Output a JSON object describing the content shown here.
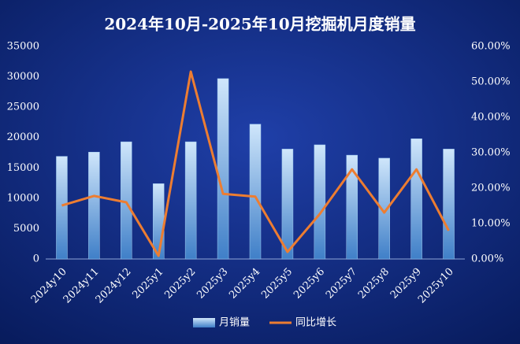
{
  "chart_data": {
    "type": "bar",
    "title": "2024年10月-2025年10月挖掘机月度销量",
    "categories": [
      "2024y10",
      "2024y11",
      "2024y12",
      "2025y1",
      "2025y2",
      "2025y3",
      "2025y4",
      "2025y5",
      "2025y6",
      "2025y7",
      "2025y8",
      "2025y9",
      "2025y10"
    ],
    "series": [
      {
        "name": "月销量",
        "color": "#9cc8ee",
        "values": [
          16900,
          17600,
          19300,
          12400,
          19300,
          29700,
          22200,
          18100,
          18800,
          17100,
          16600,
          19800,
          18100
        ]
      },
      {
        "name": "同比增长",
        "color": "#ed7d31",
        "type": "line",
        "axis": "y2",
        "values": [
          15.1,
          17.8,
          16.0,
          0.9,
          52.9,
          18.4,
          17.6,
          2.0,
          12.7,
          25.3,
          13.1,
          25.3,
          8.0
        ]
      }
    ],
    "ylim": [
      0,
      35000
    ],
    "yticks": [
      0,
      5000,
      10000,
      15000,
      20000,
      25000,
      30000,
      35000
    ],
    "y2lim": [
      0,
      60
    ],
    "y2ticks": [
      {
        "value": 0,
        "label": "0.00%"
      },
      {
        "value": 10,
        "label": "10.00%"
      },
      {
        "value": 20,
        "label": "20.00%"
      },
      {
        "value": 30,
        "label": "30.00%"
      },
      {
        "value": 40,
        "label": "40.00%"
      },
      {
        "value": 50,
        "label": "50.00%"
      },
      {
        "value": 60,
        "label": "60.00%"
      }
    ],
    "legend": "bottom"
  }
}
